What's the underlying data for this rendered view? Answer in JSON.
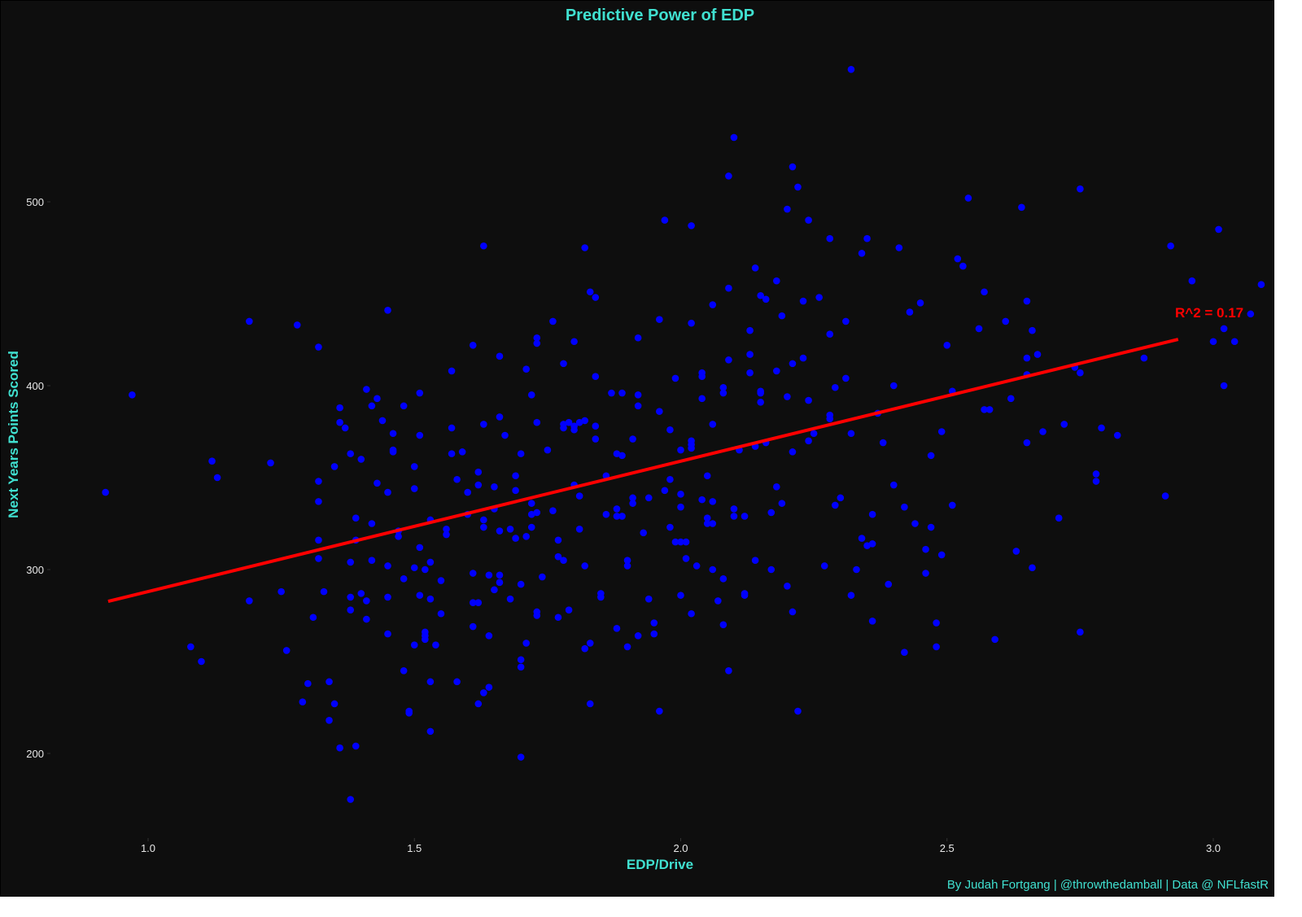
{
  "chart_data": {
    "type": "scatter",
    "title": "Predictive Power of EDP",
    "xlabel": "EDP/Drive",
    "ylabel": "Next Years Points Scored",
    "caption": "By Judah Fortgang | @throwthedamball | Data @ NFLfastR",
    "annotation": "R^2 = 0.17",
    "xlim": [
      0.84,
      3.08
    ],
    "ylim": [
      150,
      582
    ],
    "xticks": [
      1.0,
      1.5,
      2.0,
      2.5,
      3.0
    ],
    "xtick_labels": [
      "1.0",
      "1.5",
      "2.0",
      "2.5",
      "3.0"
    ],
    "yticks": [
      200,
      300,
      400,
      500
    ],
    "ytick_labels": [
      "200",
      "300",
      "400",
      "500"
    ],
    "grid": false,
    "legend": null,
    "colors": {
      "background": "#0e0e0e",
      "points": "#0000ff",
      "line": "#ff0000",
      "text_accent": "#40e0d0",
      "tick_text": "#e8e8e8"
    },
    "regression_line": {
      "x": [
        0.925,
        2.934
      ],
      "y": [
        282.7,
        425.2
      ],
      "r_squared": 0.17
    },
    "points": [
      [
        0.92,
        342
      ],
      [
        0.97,
        395
      ],
      [
        1.08,
        258
      ],
      [
        1.1,
        250
      ],
      [
        1.12,
        359
      ],
      [
        1.13,
        350
      ],
      [
        1.19,
        435
      ],
      [
        1.19,
        283
      ],
      [
        1.23,
        358
      ],
      [
        1.25,
        288
      ],
      [
        1.26,
        256
      ],
      [
        1.28,
        433
      ],
      [
        1.29,
        228
      ],
      [
        1.3,
        238
      ],
      [
        1.31,
        274
      ],
      [
        1.32,
        421
      ],
      [
        1.32,
        348
      ],
      [
        1.32,
        337
      ],
      [
        1.32,
        316
      ],
      [
        1.32,
        306
      ],
      [
        1.33,
        288
      ],
      [
        1.34,
        239
      ],
      [
        1.34,
        218
      ],
      [
        1.35,
        356
      ],
      [
        1.35,
        227
      ],
      [
        1.36,
        388
      ],
      [
        1.36,
        380
      ],
      [
        1.37,
        377
      ],
      [
        1.36,
        203
      ],
      [
        1.38,
        363
      ],
      [
        1.38,
        175
      ],
      [
        1.38,
        304
      ],
      [
        1.38,
        285
      ],
      [
        1.38,
        278
      ],
      [
        1.39,
        328
      ],
      [
        1.39,
        316
      ],
      [
        1.39,
        204
      ],
      [
        1.4,
        360
      ],
      [
        1.4,
        287
      ],
      [
        1.41,
        398
      ],
      [
        1.41,
        283
      ],
      [
        1.41,
        273
      ],
      [
        1.42,
        389
      ],
      [
        1.42,
        305
      ],
      [
        1.42,
        325
      ],
      [
        1.43,
        393
      ],
      [
        1.43,
        347
      ],
      [
        1.44,
        381
      ],
      [
        1.45,
        441
      ],
      [
        1.45,
        342
      ],
      [
        1.45,
        285
      ],
      [
        1.45,
        265
      ],
      [
        1.45,
        302
      ],
      [
        1.46,
        374
      ],
      [
        1.46,
        365
      ],
      [
        1.46,
        364
      ],
      [
        1.47,
        321
      ],
      [
        1.47,
        318
      ],
      [
        1.48,
        389
      ],
      [
        1.48,
        245
      ],
      [
        1.48,
        295
      ],
      [
        1.49,
        223
      ],
      [
        1.49,
        222
      ],
      [
        1.5,
        356
      ],
      [
        1.5,
        344
      ],
      [
        1.5,
        301
      ],
      [
        1.5,
        259
      ],
      [
        1.51,
        396
      ],
      [
        1.51,
        373
      ],
      [
        1.51,
        312
      ],
      [
        1.51,
        286
      ],
      [
        1.52,
        266
      ],
      [
        1.52,
        264
      ],
      [
        1.52,
        262
      ],
      [
        1.52,
        300
      ],
      [
        1.53,
        304
      ],
      [
        1.53,
        284
      ],
      [
        1.53,
        212
      ],
      [
        1.53,
        239
      ],
      [
        1.53,
        327
      ],
      [
        1.54,
        259
      ],
      [
        1.55,
        294
      ],
      [
        1.55,
        276
      ],
      [
        1.56,
        322
      ],
      [
        1.56,
        319
      ],
      [
        1.57,
        363
      ],
      [
        1.57,
        408
      ],
      [
        1.57,
        377
      ],
      [
        1.58,
        349
      ],
      [
        1.58,
        239
      ],
      [
        1.59,
        364
      ],
      [
        1.6,
        330
      ],
      [
        1.6,
        342
      ],
      [
        1.61,
        282
      ],
      [
        1.61,
        269
      ],
      [
        1.61,
        298
      ],
      [
        1.61,
        422
      ],
      [
        1.62,
        346
      ],
      [
        1.62,
        282
      ],
      [
        1.62,
        353
      ],
      [
        1.62,
        227
      ],
      [
        1.63,
        233
      ],
      [
        1.63,
        476
      ],
      [
        1.63,
        379
      ],
      [
        1.63,
        327
      ],
      [
        1.63,
        323
      ],
      [
        1.64,
        297
      ],
      [
        1.64,
        264
      ],
      [
        1.64,
        236
      ],
      [
        1.65,
        345
      ],
      [
        1.65,
        333
      ],
      [
        1.65,
        289
      ],
      [
        1.66,
        383
      ],
      [
        1.66,
        297
      ],
      [
        1.66,
        416
      ],
      [
        1.66,
        293
      ],
      [
        1.66,
        321
      ],
      [
        1.67,
        373
      ],
      [
        1.68,
        322
      ],
      [
        1.68,
        284
      ],
      [
        1.69,
        317
      ],
      [
        1.69,
        351
      ],
      [
        1.69,
        343
      ],
      [
        1.7,
        363
      ],
      [
        1.7,
        292
      ],
      [
        1.7,
        251
      ],
      [
        1.7,
        247
      ],
      [
        1.7,
        198
      ],
      [
        1.71,
        260
      ],
      [
        1.71,
        318
      ],
      [
        1.71,
        409
      ],
      [
        1.72,
        330
      ],
      [
        1.72,
        323
      ],
      [
        1.72,
        336
      ],
      [
        1.72,
        395
      ],
      [
        1.73,
        423
      ],
      [
        1.73,
        426
      ],
      [
        1.73,
        380
      ],
      [
        1.73,
        331
      ],
      [
        1.73,
        277
      ],
      [
        1.73,
        275
      ],
      [
        1.74,
        296
      ],
      [
        1.75,
        365
      ],
      [
        1.76,
        435
      ],
      [
        1.76,
        332
      ],
      [
        1.77,
        307
      ],
      [
        1.77,
        316
      ],
      [
        1.77,
        274
      ],
      [
        1.78,
        379
      ],
      [
        1.78,
        377
      ],
      [
        1.78,
        412
      ],
      [
        1.78,
        305
      ],
      [
        1.79,
        278
      ],
      [
        1.79,
        380
      ],
      [
        1.8,
        346
      ],
      [
        1.8,
        424
      ],
      [
        1.8,
        376
      ],
      [
        1.8,
        378
      ],
      [
        1.81,
        380
      ],
      [
        1.81,
        322
      ],
      [
        1.81,
        340
      ],
      [
        1.82,
        257
      ],
      [
        1.82,
        302
      ],
      [
        1.82,
        475
      ],
      [
        1.82,
        381
      ],
      [
        1.83,
        451
      ],
      [
        1.83,
        260
      ],
      [
        1.83,
        227
      ],
      [
        1.84,
        378
      ],
      [
        1.84,
        371
      ],
      [
        1.84,
        448
      ],
      [
        1.84,
        405
      ],
      [
        1.85,
        287
      ],
      [
        1.85,
        285
      ],
      [
        1.86,
        330
      ],
      [
        1.86,
        351
      ],
      [
        1.87,
        396
      ],
      [
        1.88,
        363
      ],
      [
        1.88,
        329
      ],
      [
        1.88,
        333
      ],
      [
        1.88,
        268
      ],
      [
        1.89,
        396
      ],
      [
        1.89,
        362
      ],
      [
        1.89,
        329
      ],
      [
        1.9,
        258
      ],
      [
        1.9,
        302
      ],
      [
        1.9,
        305
      ],
      [
        1.91,
        371
      ],
      [
        1.91,
        339
      ],
      [
        1.91,
        336
      ],
      [
        1.92,
        264
      ],
      [
        1.92,
        426
      ],
      [
        1.92,
        389
      ],
      [
        1.92,
        395
      ],
      [
        1.93,
        320
      ],
      [
        1.94,
        284
      ],
      [
        1.94,
        339
      ],
      [
        1.95,
        265
      ],
      [
        1.95,
        271
      ],
      [
        1.96,
        386
      ],
      [
        1.96,
        223
      ],
      [
        1.96,
        436
      ],
      [
        1.97,
        490
      ],
      [
        1.97,
        343
      ],
      [
        1.98,
        376
      ],
      [
        1.98,
        349
      ],
      [
        1.98,
        323
      ],
      [
        1.99,
        404
      ],
      [
        1.99,
        315
      ],
      [
        2.0,
        365
      ],
      [
        2.0,
        315
      ],
      [
        2.0,
        286
      ],
      [
        2.0,
        334
      ],
      [
        2.0,
        341
      ],
      [
        2.01,
        306
      ],
      [
        2.01,
        315
      ],
      [
        2.02,
        370
      ],
      [
        2.02,
        368
      ],
      [
        2.02,
        366
      ],
      [
        2.02,
        434
      ],
      [
        2.02,
        487
      ],
      [
        2.02,
        276
      ],
      [
        2.03,
        302
      ],
      [
        2.04,
        338
      ],
      [
        2.04,
        393
      ],
      [
        2.04,
        407
      ],
      [
        2.04,
        405
      ],
      [
        2.05,
        351
      ],
      [
        2.05,
        325
      ],
      [
        2.05,
        328
      ],
      [
        2.06,
        300
      ],
      [
        2.06,
        444
      ],
      [
        2.06,
        379
      ],
      [
        2.06,
        337
      ],
      [
        2.06,
        325
      ],
      [
        2.07,
        283
      ],
      [
        2.08,
        396
      ],
      [
        2.08,
        270
      ],
      [
        2.08,
        295
      ],
      [
        2.08,
        399
      ],
      [
        2.09,
        245
      ],
      [
        2.09,
        514
      ],
      [
        2.1,
        535
      ],
      [
        2.09,
        453
      ],
      [
        2.09,
        414
      ],
      [
        2.1,
        333
      ],
      [
        2.1,
        329
      ],
      [
        2.11,
        365
      ],
      [
        2.12,
        286
      ],
      [
        2.12,
        329
      ],
      [
        2.12,
        287
      ],
      [
        2.13,
        407
      ],
      [
        2.13,
        430
      ],
      [
        2.13,
        417
      ],
      [
        2.14,
        464
      ],
      [
        2.14,
        367
      ],
      [
        2.14,
        305
      ],
      [
        2.15,
        396
      ],
      [
        2.15,
        391
      ],
      [
        2.15,
        397
      ],
      [
        2.15,
        449
      ],
      [
        2.16,
        447
      ],
      [
        2.16,
        369
      ],
      [
        2.17,
        331
      ],
      [
        2.17,
        300
      ],
      [
        2.18,
        345
      ],
      [
        2.18,
        408
      ],
      [
        2.18,
        457
      ],
      [
        2.19,
        336
      ],
      [
        2.19,
        438
      ],
      [
        2.2,
        394
      ],
      [
        2.2,
        496
      ],
      [
        2.2,
        291
      ],
      [
        2.21,
        519
      ],
      [
        2.21,
        412
      ],
      [
        2.21,
        364
      ],
      [
        2.22,
        508
      ],
      [
        2.21,
        277
      ],
      [
        2.22,
        223
      ],
      [
        2.23,
        446
      ],
      [
        2.23,
        415
      ],
      [
        2.24,
        490
      ],
      [
        2.24,
        370
      ],
      [
        2.24,
        392
      ],
      [
        2.25,
        374
      ],
      [
        2.26,
        448
      ],
      [
        2.27,
        302
      ],
      [
        2.28,
        480
      ],
      [
        2.28,
        428
      ],
      [
        2.28,
        384
      ],
      [
        2.28,
        382
      ],
      [
        2.29,
        399
      ],
      [
        2.29,
        335
      ],
      [
        2.3,
        339
      ],
      [
        2.31,
        404
      ],
      [
        2.31,
        435
      ],
      [
        2.32,
        374
      ],
      [
        2.32,
        286
      ],
      [
        2.33,
        300
      ],
      [
        2.34,
        317
      ],
      [
        2.34,
        472
      ],
      [
        2.35,
        313
      ],
      [
        2.35,
        480
      ],
      [
        2.36,
        330
      ],
      [
        2.36,
        314
      ],
      [
        2.36,
        272
      ],
      [
        2.37,
        385
      ],
      [
        2.38,
        369
      ],
      [
        2.39,
        292
      ],
      [
        2.4,
        400
      ],
      [
        2.4,
        346
      ],
      [
        2.41,
        475
      ],
      [
        2.42,
        334
      ],
      [
        2.42,
        255
      ],
      [
        2.43,
        440
      ],
      [
        2.44,
        325
      ],
      [
        2.45,
        445
      ],
      [
        2.46,
        298
      ],
      [
        2.46,
        311
      ],
      [
        2.47,
        362
      ],
      [
        2.47,
        323
      ],
      [
        2.48,
        258
      ],
      [
        2.48,
        271
      ],
      [
        2.49,
        375
      ],
      [
        2.49,
        308
      ],
      [
        2.5,
        422
      ],
      [
        2.51,
        397
      ],
      [
        2.51,
        335
      ],
      [
        2.52,
        469
      ],
      [
        2.53,
        465
      ],
      [
        2.54,
        502
      ],
      [
        2.56,
        431
      ],
      [
        2.57,
        387
      ],
      [
        2.57,
        451
      ],
      [
        2.58,
        387
      ],
      [
        2.59,
        262
      ],
      [
        2.61,
        435
      ],
      [
        2.62,
        393
      ],
      [
        2.63,
        310
      ],
      [
        2.64,
        497
      ],
      [
        2.65,
        446
      ],
      [
        2.65,
        406
      ],
      [
        2.65,
        415
      ],
      [
        2.65,
        369
      ],
      [
        2.66,
        301
      ],
      [
        2.66,
        430
      ],
      [
        2.67,
        417
      ],
      [
        2.68,
        375
      ],
      [
        2.71,
        328
      ],
      [
        2.72,
        379
      ],
      [
        2.74,
        410
      ],
      [
        2.75,
        507
      ],
      [
        2.75,
        407
      ],
      [
        2.75,
        266
      ],
      [
        2.78,
        352
      ],
      [
        2.78,
        348
      ],
      [
        2.79,
        377
      ],
      [
        2.82,
        373
      ],
      [
        2.87,
        415
      ],
      [
        2.91,
        340
      ],
      [
        2.92,
        476
      ],
      [
        2.96,
        457
      ],
      [
        3.0,
        424
      ],
      [
        3.01,
        485
      ],
      [
        3.02,
        431
      ],
      [
        3.02,
        400
      ],
      [
        3.04,
        424
      ],
      [
        3.07,
        439
      ],
      [
        3.09,
        455
      ],
      [
        2.32,
        572
      ]
    ]
  }
}
